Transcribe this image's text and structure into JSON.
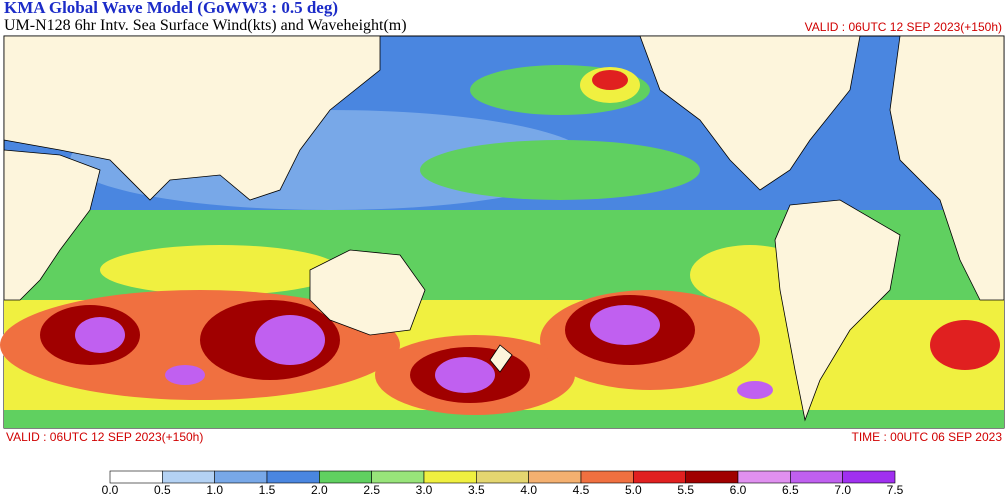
{
  "header": {
    "title": "KMA  Global Wave Model (GoWW3 : 0.5 deg)",
    "subtitle": "UM-N128  6hr Intv. Sea Surface Wind(kts) and Waveheight(m)",
    "valid_top": "VALID : 06UTC 12 SEP 2023(+150h)"
  },
  "footer": {
    "valid": "VALID : 06UTC 12 SEP 2023(+150h)",
    "time": "TIME : 00UTC 06 SEP 2023"
  },
  "colorbar": {
    "labels": [
      "0.0",
      "0.5",
      "1.0",
      "1.5",
      "2.0",
      "2.5",
      "3.0",
      "3.5",
      "4.0",
      "4.5",
      "5.0",
      "5.5",
      "6.0",
      "6.5",
      "7.0",
      "7.5"
    ],
    "colors": [
      "#ffffff",
      "#b4d2f4",
      "#78a8e8",
      "#4a86e0",
      "#60d060",
      "#98e47a",
      "#f0f040",
      "#e4d670",
      "#f4b070",
      "#f07040",
      "#e02020",
      "#a00000",
      "#e090f0",
      "#c060f0",
      "#a030f0"
    ]
  }
}
